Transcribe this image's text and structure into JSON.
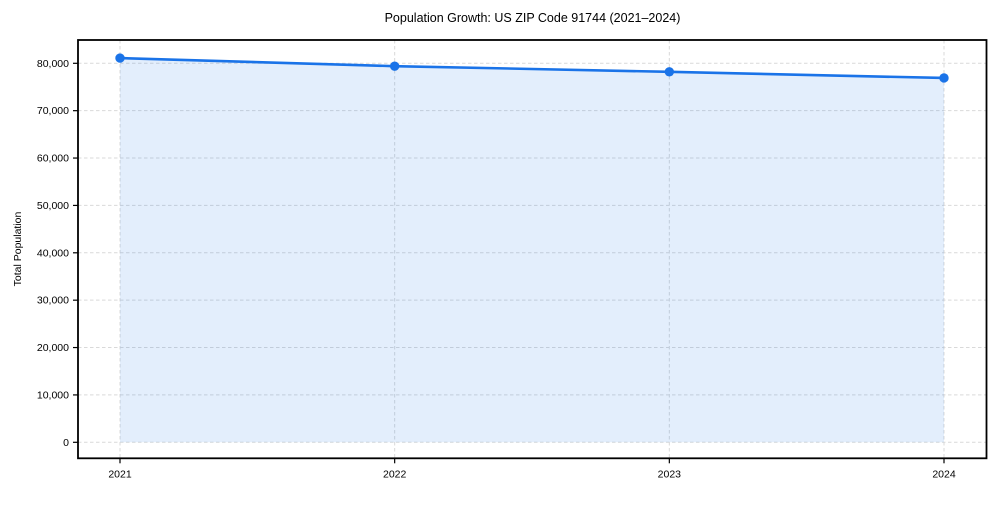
{
  "chart_data": {
    "type": "area",
    "title": "Population Growth: US ZIP Code 91744 (2021–2024)",
    "xlabel": "",
    "ylabel": "Total Population",
    "x": [
      2021,
      2022,
      2023,
      2024
    ],
    "x_tick_labels": [
      "2021",
      "2022",
      "2023",
      "2024"
    ],
    "series": [
      {
        "name": "Total Population",
        "values": [
          81100,
          79400,
          78200,
          76900
        ]
      }
    ],
    "y_ticks": [
      0,
      10000,
      20000,
      30000,
      40000,
      50000,
      60000,
      70000,
      80000
    ],
    "y_tick_labels": [
      "0",
      "10,000",
      "20,000",
      "30,000",
      "40,000",
      "50,000",
      "60,000",
      "70,000",
      "80,000"
    ],
    "ylim": [
      0,
      85000
    ],
    "grid": true,
    "legend": false,
    "colors": {
      "line": "#1a73e8",
      "marker": "#1a73e8",
      "fill": "rgba(26,115,232,0.12)",
      "grid": "#d9d9d9",
      "frame": "#000000",
      "text": "#000000"
    }
  }
}
